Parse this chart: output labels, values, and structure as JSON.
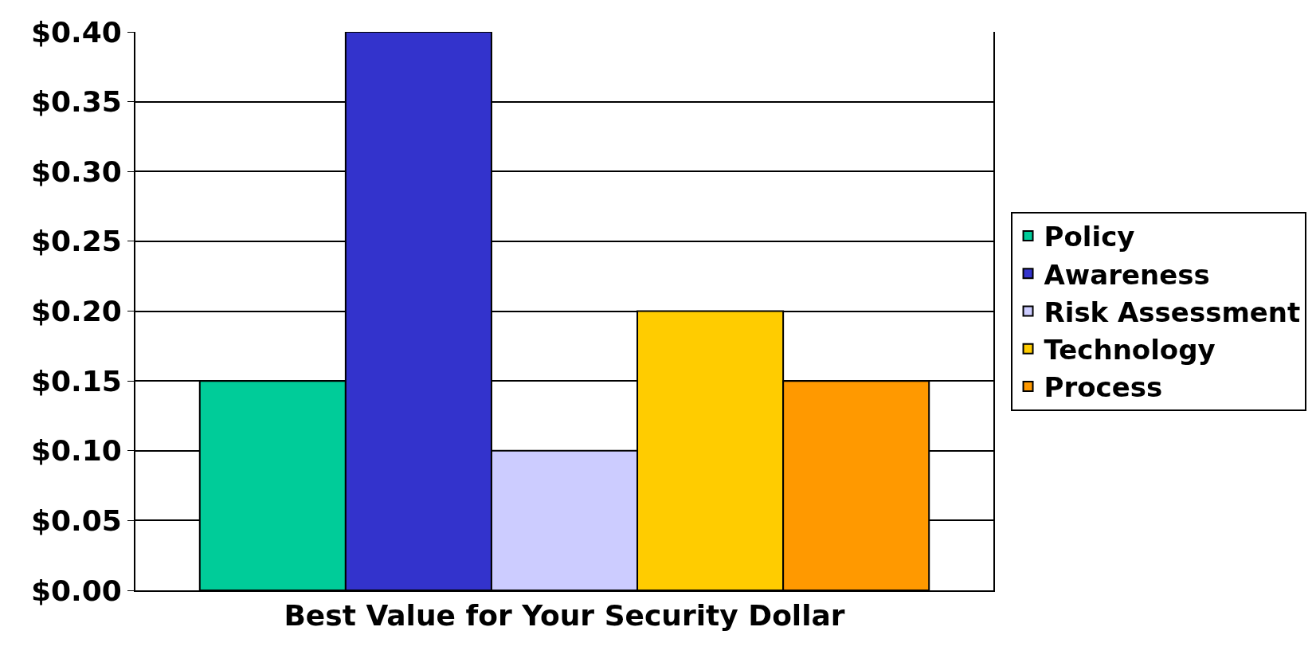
{
  "chart_data": {
    "type": "bar",
    "xlabel": "Best Value for Your Security Dollar",
    "categories": [
      null
    ],
    "series": [
      {
        "name": "Policy",
        "color": "#00cc99",
        "values": [
          0.15
        ]
      },
      {
        "name": "Awareness",
        "color": "#3333cc",
        "values": [
          0.4
        ]
      },
      {
        "name": "Risk Assessment",
        "color": "#ccccff",
        "values": [
          0.1
        ]
      },
      {
        "name": "Technology",
        "color": "#ffcc00",
        "values": [
          0.2
        ]
      },
      {
        "name": "Process",
        "color": "#ff9900",
        "values": [
          0.15
        ]
      }
    ],
    "ylim": [
      0,
      0.4
    ],
    "yticks": [
      {
        "value": 0,
        "label": "$0.00"
      },
      {
        "value": 0.05,
        "label": "$0.05"
      },
      {
        "value": 0.1,
        "label": "$0.10"
      },
      {
        "value": 0.15,
        "label": "$0.15"
      },
      {
        "value": 0.2,
        "label": "$0.20"
      },
      {
        "value": 0.25,
        "label": "$0.25"
      },
      {
        "value": 0.3,
        "label": "$0.30"
      },
      {
        "value": 0.35,
        "label": "$0.35"
      },
      {
        "value": 0.4,
        "label": "$0.40"
      }
    ],
    "grid": "y",
    "legend": "right"
  }
}
